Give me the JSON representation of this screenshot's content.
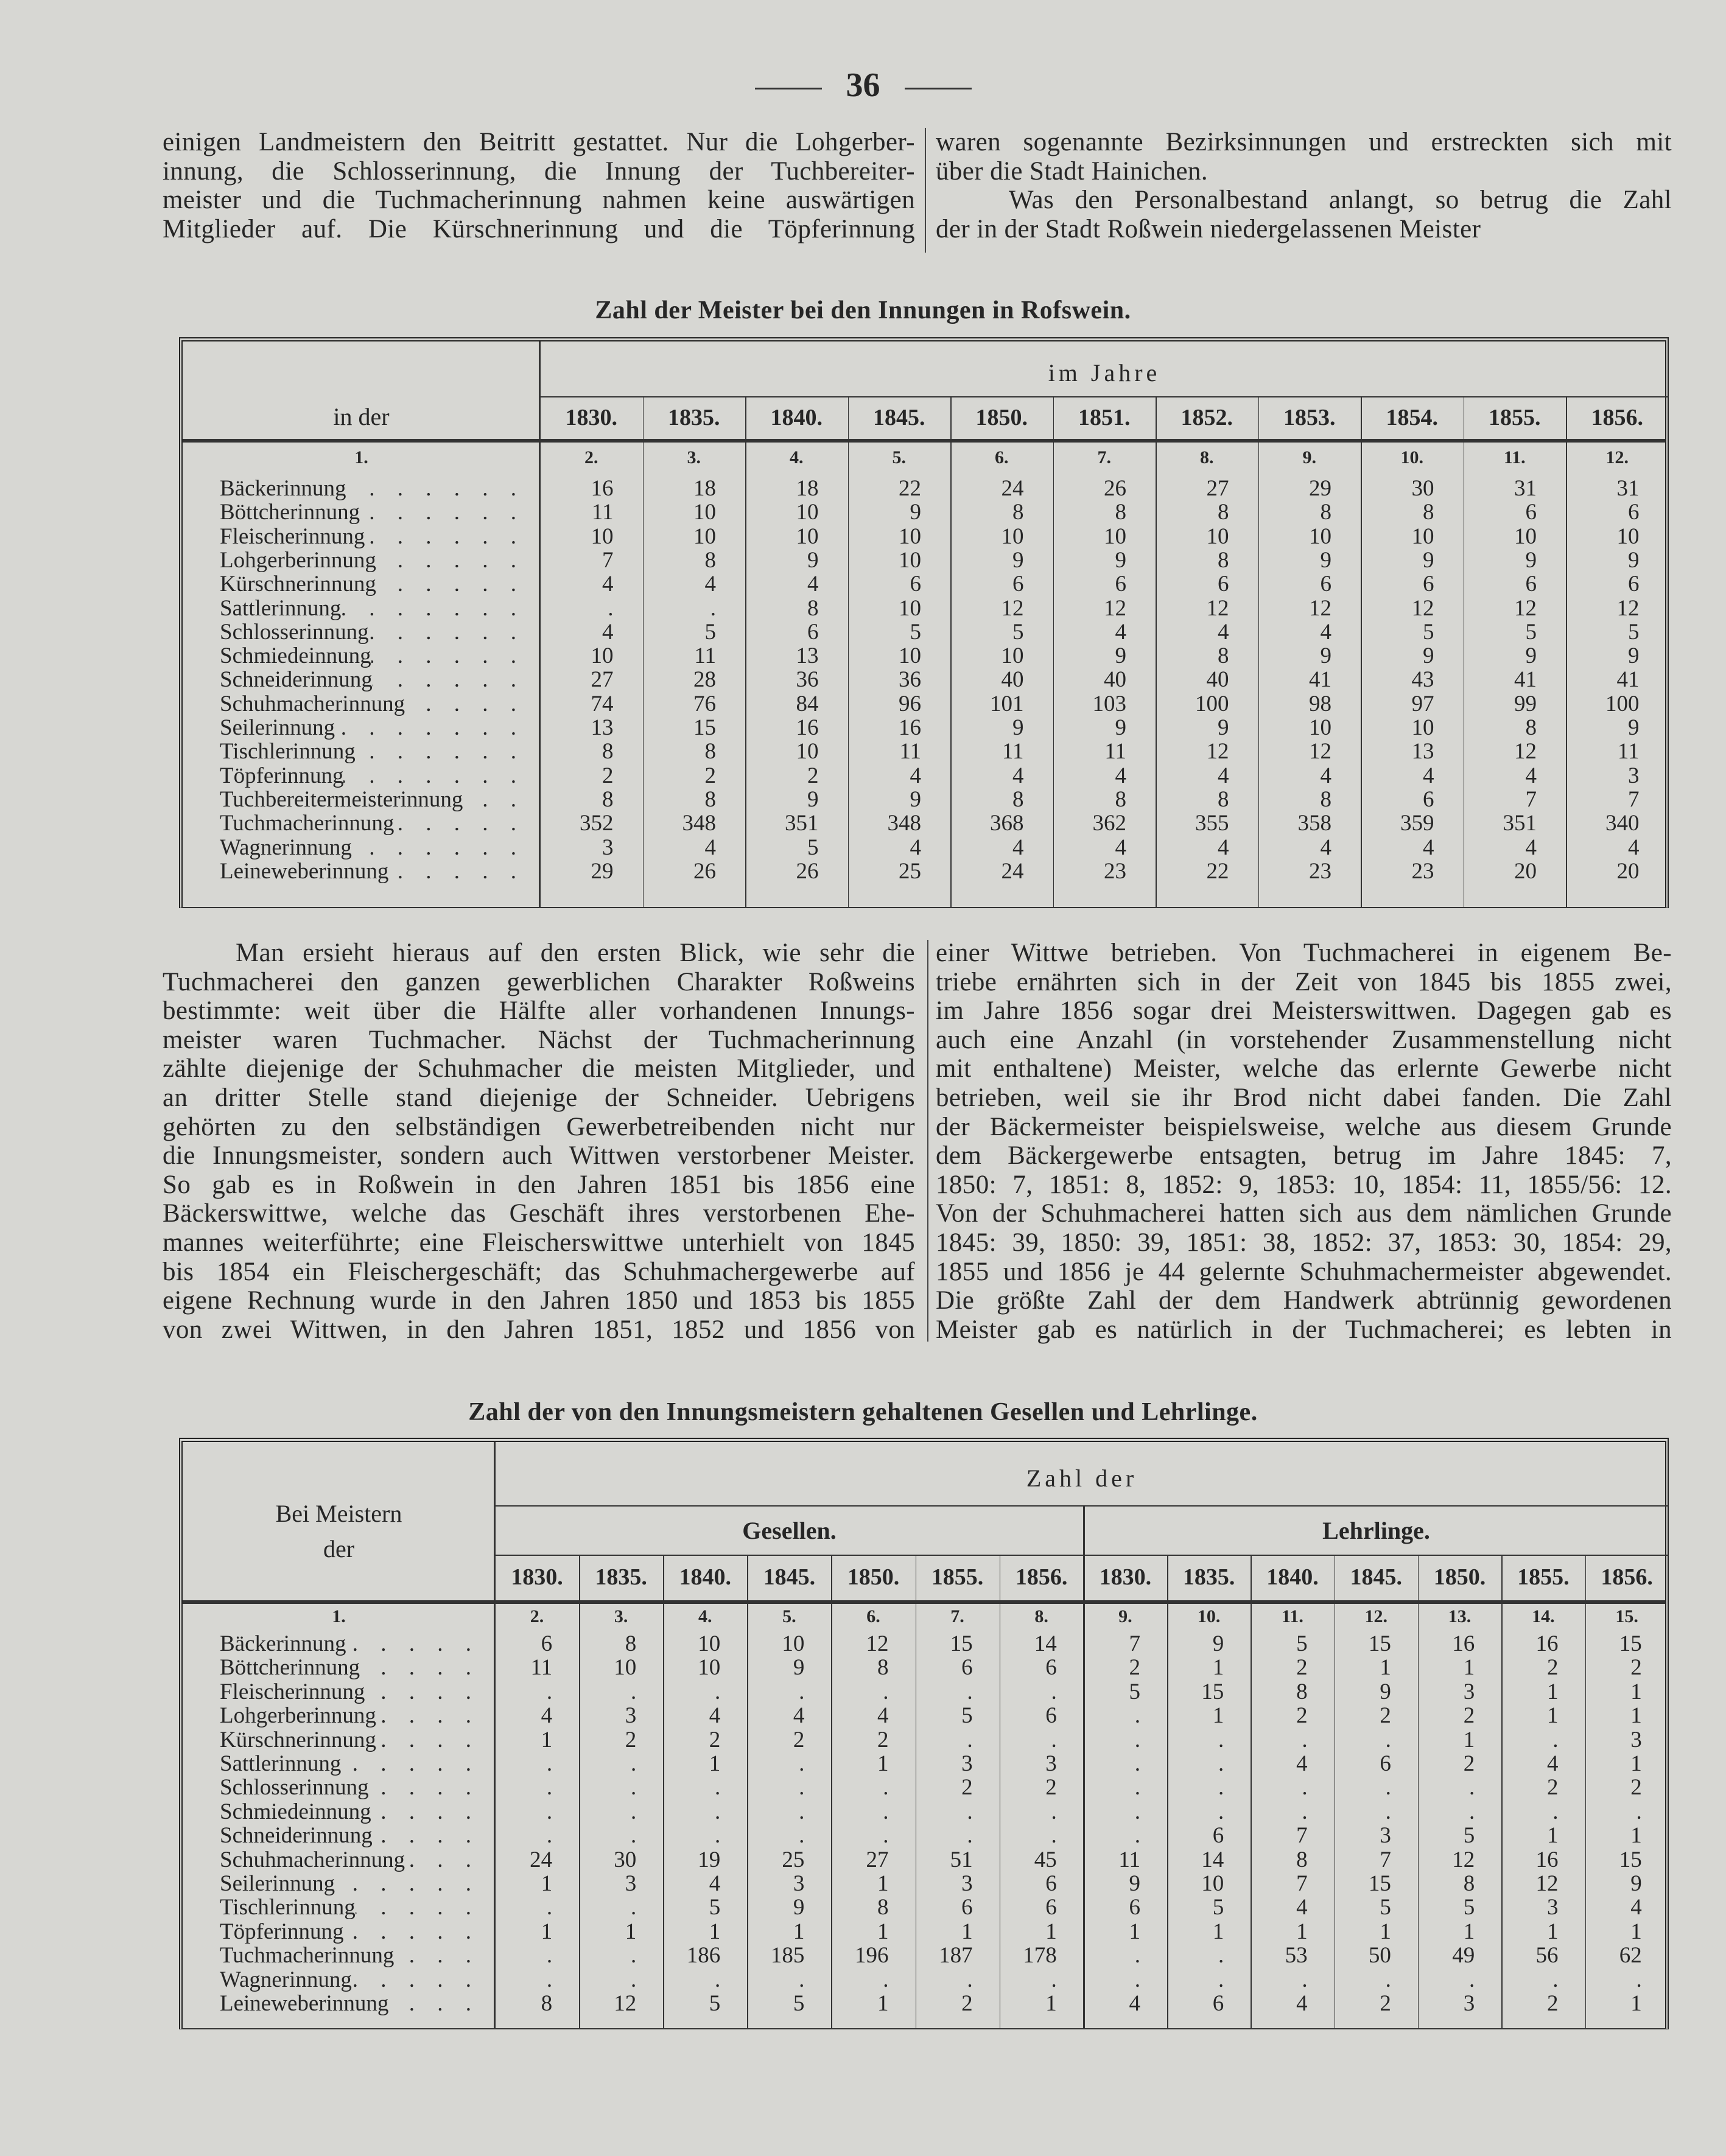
{
  "page_number": "36",
  "top_text": {
    "left": [
      {
        "indent": false,
        "ends": false,
        "lines": [
          "einigen Landmeistern den Beitritt gestattet. Nur die Lohgerber-",
          "innung, die Schlosserinnung, die Innung der Tuchbereiter-",
          "meister und die Tuchmacherinnung nahmen keine auswärtigen",
          "Mitglieder auf. Die Kürschnerinnung und die Töpferinnung"
        ]
      }
    ],
    "right": [
      {
        "indent": false,
        "ends": true,
        "lines": [
          "waren sogenannte Bezirksinnungen und erstreckten sich mit",
          "über die Stadt Hainichen."
        ]
      },
      {
        "indent": true,
        "ends": true,
        "lines": [
          "Was den Personalbestand anlangt, so betrug die Zahl",
          "der in der Stadt Roßwein niedergelassenen Meister"
        ]
      }
    ]
  },
  "table1": {
    "title": "Zahl der Meister bei den Innungen in Rofswein.",
    "label_header": "in der",
    "group_header": "im Jahre",
    "years": [
      "1830.",
      "1835.",
      "1840.",
      "1845.",
      "1850.",
      "1851.",
      "1852.",
      "1853.",
      "1854.",
      "1855.",
      "1856."
    ],
    "column_numbers": [
      "1.",
      "2.",
      "3.",
      "4.",
      "5.",
      "6.",
      "7.",
      "8.",
      "9.",
      "10.",
      "11.",
      "12."
    ],
    "rows": [
      {
        "name": "Bäckerinnung",
        "values": [
          "16",
          "18",
          "18",
          "22",
          "24",
          "26",
          "27",
          "29",
          "30",
          "31",
          "31"
        ]
      },
      {
        "name": "Böttcherinnung",
        "values": [
          "11",
          "10",
          "10",
          "9",
          "8",
          "8",
          "8",
          "8",
          "8",
          "6",
          "6"
        ]
      },
      {
        "name": "Fleischerinnung",
        "values": [
          "10",
          "10",
          "10",
          "10",
          "10",
          "10",
          "10",
          "10",
          "10",
          "10",
          "10"
        ]
      },
      {
        "name": "Lohgerberinnung",
        "values": [
          "7",
          "8",
          "9",
          "10",
          "9",
          "9",
          "8",
          "9",
          "9",
          "9",
          "9"
        ]
      },
      {
        "name": "Kürschnerinnung",
        "values": [
          "4",
          "4",
          "4",
          "6",
          "6",
          "6",
          "6",
          "6",
          "6",
          "6",
          "6"
        ]
      },
      {
        "name": "Sattlerinnung",
        "values": [
          ".",
          ".",
          "8",
          "10",
          "12",
          "12",
          "12",
          "12",
          "12",
          "12",
          "12"
        ]
      },
      {
        "name": "Schlosserinnung",
        "values": [
          "4",
          "5",
          "6",
          "5",
          "5",
          "4",
          "4",
          "4",
          "5",
          "5",
          "5"
        ]
      },
      {
        "name": "Schmiedeinnung",
        "values": [
          "10",
          "11",
          "13",
          "10",
          "10",
          "9",
          "8",
          "9",
          "9",
          "9",
          "9"
        ]
      },
      {
        "name": "Schneiderinnung",
        "values": [
          "27",
          "28",
          "36",
          "36",
          "40",
          "40",
          "40",
          "41",
          "43",
          "41",
          "41"
        ]
      },
      {
        "name": "Schuhmacherinnung",
        "values": [
          "74",
          "76",
          "84",
          "96",
          "101",
          "103",
          "100",
          "98",
          "97",
          "99",
          "100"
        ]
      },
      {
        "name": "Seilerinnung",
        "values": [
          "13",
          "15",
          "16",
          "16",
          "9",
          "9",
          "9",
          "10",
          "10",
          "8",
          "9"
        ]
      },
      {
        "name": "Tischlerinnung",
        "values": [
          "8",
          "8",
          "10",
          "11",
          "11",
          "11",
          "12",
          "12",
          "13",
          "12",
          "11"
        ]
      },
      {
        "name": "Töpferinnung",
        "values": [
          "2",
          "2",
          "2",
          "4",
          "4",
          "4",
          "4",
          "4",
          "4",
          "4",
          "3"
        ]
      },
      {
        "name": "Tuchbereitermeisterinnung",
        "values": [
          "8",
          "8",
          "9",
          "9",
          "8",
          "8",
          "8",
          "8",
          "6",
          "7",
          "7"
        ]
      },
      {
        "name": "Tuchmacherinnung",
        "values": [
          "352",
          "348",
          "351",
          "348",
          "368",
          "362",
          "355",
          "358",
          "359",
          "351",
          "340"
        ]
      },
      {
        "name": "Wagnerinnung",
        "values": [
          "3",
          "4",
          "5",
          "4",
          "4",
          "4",
          "4",
          "4",
          "4",
          "4",
          "4"
        ]
      },
      {
        "name": "Leineweberinnung",
        "values": [
          "29",
          "26",
          "26",
          "25",
          "24",
          "23",
          "22",
          "23",
          "23",
          "20",
          "20"
        ]
      }
    ]
  },
  "middle_text": {
    "left": [
      {
        "indent": true,
        "ends": false,
        "lines": [
          "Man ersieht hieraus auf den ersten Blick, wie sehr die",
          "Tuchmacherei den ganzen gewerblichen Charakter Roßweins",
          "bestimmte: weit über die Hälfte aller vorhandenen Innungs-",
          "meister waren Tuchmacher. Nächst der Tuchmacherinnung",
          "zählte diejenige der Schuhmacher die meisten Mitglieder, und",
          "an dritter Stelle stand diejenige der Schneider. Uebrigens",
          "gehörten zu den selbständigen Gewerbetreibenden nicht nur",
          "die Innungsmeister, sondern auch Wittwen verstorbener Meister.",
          "So gab es in Roßwein in den Jahren 1851 bis 1856 eine",
          "Bäckerswittwe, welche das Geschäft ihres verstorbenen Ehe-",
          "mannes weiterführte; eine Fleischerswittwe unterhielt von 1845",
          "bis 1854 ein Fleischergeschäft; das Schuhmachergewerbe auf",
          "eigene Rechnung wurde in den Jahren 1850 und 1853 bis 1855",
          "von zwei Wittwen, in den Jahren 1851, 1852 und 1856 von"
        ]
      }
    ],
    "right": [
      {
        "indent": false,
        "ends": false,
        "lines": [
          "einer Wittwe betrieben. Von Tuchmacherei in eigenem Be-",
          "triebe ernährten sich in der Zeit von 1845 bis 1855 zwei,",
          "im Jahre 1856 sogar drei Meisterswittwen. Dagegen gab es",
          "auch eine Anzahl (in vorstehender Zusammenstellung nicht",
          "mit enthaltene) Meister, welche das erlernte Gewerbe nicht",
          "betrieben, weil sie ihr Brod nicht dabei fanden. Die Zahl",
          "der Bäckermeister beispielsweise, welche aus diesem Grunde",
          "dem Bäckergewerbe entsagten, betrug im Jahre 1845: 7,",
          "1850: 7, 1851: 8, 1852: 9, 1853: 10, 1854: 11, 1855/56: 12.",
          "Von der Schuhmacherei hatten sich aus dem nämlichen Grunde",
          "1845: 39, 1850: 39, 1851: 38, 1852: 37, 1853: 30, 1854: 29,",
          "1855 und 1856 je 44 gelernte Schuhmachermeister abgewendet.",
          "Die größte Zahl der dem Handwerk abtrünnig gewordenen",
          "Meister gab es natürlich in der Tuchmacherei; es lebten in"
        ]
      }
    ]
  },
  "table2": {
    "title": "Zahl der von den Innungsmeistern gehaltenen Gesellen und Lehrlinge.",
    "label_header_1": "Bei Meistern",
    "label_header_2": "der",
    "group_header": "Zahl der",
    "subgroups": [
      "Gesellen.",
      "Lehrlinge."
    ],
    "years": [
      "1830.",
      "1835.",
      "1840.",
      "1845.",
      "1850.",
      "1855.",
      "1856.",
      "1830.",
      "1835.",
      "1840.",
      "1845.",
      "1850.",
      "1855.",
      "1856."
    ],
    "column_numbers": [
      "1.",
      "2.",
      "3.",
      "4.",
      "5.",
      "6.",
      "7.",
      "8.",
      "9.",
      "10.",
      "11.",
      "12.",
      "13.",
      "14.",
      "15."
    ],
    "rows": [
      {
        "name": "Bäckerinnung",
        "values": [
          "6",
          "8",
          "10",
          "10",
          "12",
          "15",
          "14",
          "7",
          "9",
          "5",
          "15",
          "16",
          "16",
          "15"
        ]
      },
      {
        "name": "Böttcherinnung",
        "values": [
          "11",
          "10",
          "10",
          "9",
          "8",
          "6",
          "6",
          "2",
          "1",
          "2",
          "1",
          "1",
          "2",
          "2"
        ]
      },
      {
        "name": "Fleischerinnung",
        "values": [
          ".",
          ".",
          ".",
          ".",
          ".",
          ".",
          ".",
          "5",
          "15",
          "8",
          "9",
          "3",
          "1",
          "1"
        ]
      },
      {
        "name": "Lohgerberinnung",
        "values": [
          "4",
          "3",
          "4",
          "4",
          "4",
          "5",
          "6",
          ".",
          "1",
          "2",
          "2",
          "2",
          "1",
          "1"
        ]
      },
      {
        "name": "Kürschnerinnung",
        "values": [
          "1",
          "2",
          "2",
          "2",
          "2",
          ".",
          ".",
          ".",
          ".",
          ".",
          ".",
          "1",
          ".",
          "3"
        ]
      },
      {
        "name": "Sattlerinnung",
        "values": [
          ".",
          ".",
          "1",
          ".",
          "1",
          "3",
          "3",
          ".",
          ".",
          "4",
          "6",
          "2",
          "4",
          "1"
        ]
      },
      {
        "name": "Schlosserinnung",
        "values": [
          ".",
          ".",
          ".",
          ".",
          ".",
          "2",
          "2",
          ".",
          ".",
          ".",
          ".",
          ".",
          "2",
          "2"
        ]
      },
      {
        "name": "Schmiedeinnung",
        "values": [
          ".",
          ".",
          ".",
          ".",
          ".",
          ".",
          ".",
          ".",
          ".",
          ".",
          ".",
          ".",
          ".",
          "."
        ]
      },
      {
        "name": "Schneiderinnung",
        "values": [
          ".",
          ".",
          ".",
          ".",
          ".",
          ".",
          ".",
          ".",
          "6",
          "7",
          "3",
          "5",
          "1",
          "1"
        ]
      },
      {
        "name": "Schuhmacherinnung",
        "values": [
          "24",
          "30",
          "19",
          "25",
          "27",
          "51",
          "45",
          "11",
          "14",
          "8",
          "7",
          "12",
          "16",
          "15"
        ]
      },
      {
        "name": "Seilerinnung",
        "values": [
          "1",
          "3",
          "4",
          "3",
          "1",
          "3",
          "6",
          "9",
          "10",
          "7",
          "15",
          "8",
          "12",
          "9"
        ]
      },
      {
        "name": "Tischlerinnung",
        "values": [
          ".",
          ".",
          "5",
          "9",
          "8",
          "6",
          "6",
          "6",
          "5",
          "4",
          "5",
          "5",
          "3",
          "4"
        ]
      },
      {
        "name": "Töpferinnung",
        "values": [
          "1",
          "1",
          "1",
          "1",
          "1",
          "1",
          "1",
          "1",
          "1",
          "1",
          "1",
          "1",
          "1",
          "1"
        ]
      },
      {
        "name": "Tuchmacherinnung",
        "values": [
          ".",
          ".",
          "186",
          "185",
          "196",
          "187",
          "178",
          ".",
          ".",
          "53",
          "50",
          "49",
          "56",
          "62"
        ]
      },
      {
        "name": "Wagnerinnung",
        "values": [
          ".",
          ".",
          ".",
          ".",
          ".",
          ".",
          ".",
          ".",
          ".",
          ".",
          ".",
          ".",
          ".",
          "."
        ]
      },
      {
        "name": "Leineweberinnung",
        "values": [
          "8",
          "12",
          "5",
          "5",
          "1",
          "2",
          "1",
          "4",
          "6",
          "4",
          "2",
          "3",
          "2",
          "1"
        ]
      }
    ]
  }
}
